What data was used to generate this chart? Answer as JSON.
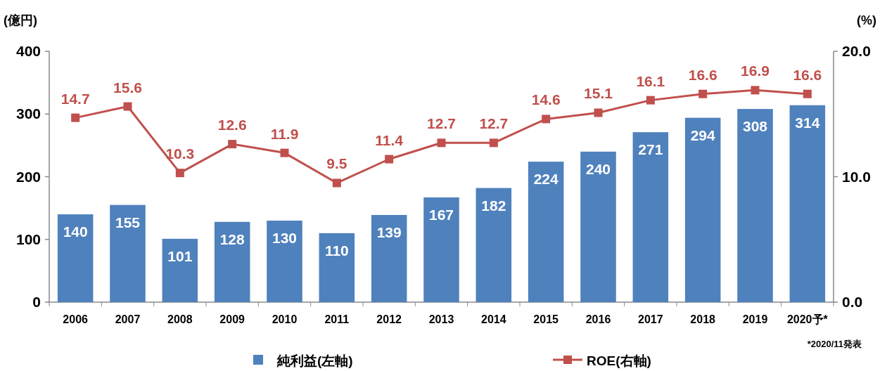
{
  "chart_data": {
    "type": "bar",
    "categories": [
      "2006",
      "2007",
      "2008",
      "2009",
      "2010",
      "2011",
      "2012",
      "2013",
      "2014",
      "2015",
      "2016",
      "2017",
      "2018",
      "2019",
      "2020予*"
    ],
    "series": [
      {
        "name": "純利益(左軸)",
        "color": "#4f81bd",
        "values": [
          140,
          155,
          101,
          128,
          130,
          110,
          139,
          167,
          182,
          224,
          240,
          271,
          294,
          308,
          314
        ]
      },
      {
        "name": "ROE(右軸)",
        "type": "line",
        "axis": "y2",
        "color": "#c0504d",
        "marker": "square",
        "values": [
          14.7,
          15.6,
          10.3,
          12.6,
          11.9,
          9.5,
          11.4,
          12.7,
          12.7,
          14.6,
          15.1,
          16.1,
          16.6,
          16.9,
          16.6
        ]
      }
    ],
    "ylabel": "(億円)",
    "y2label": "(%)",
    "ylim": [
      0,
      400
    ],
    "yticks": [
      0,
      100,
      200,
      300,
      400
    ],
    "y2lim": [
      0,
      20
    ],
    "y2ticks": [
      {
        "value": 0,
        "label": "0.0"
      },
      {
        "value": 10,
        "label": "10.0"
      },
      {
        "value": 20,
        "label": "20.0"
      }
    ],
    "data_labels": true,
    "legend": "bottom",
    "grid": false,
    "annotations": [
      "*2020/11発表"
    ]
  }
}
